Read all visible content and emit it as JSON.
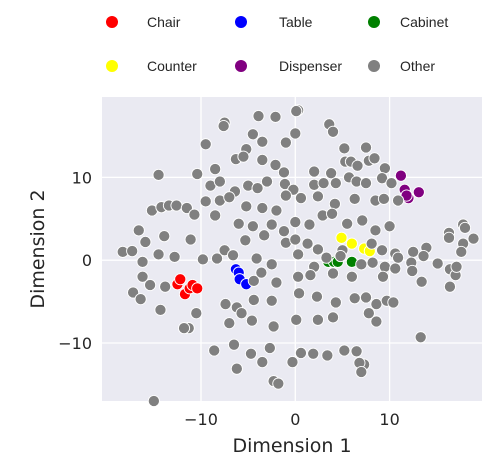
{
  "chart_data": {
    "type": "scatter",
    "title": "",
    "xlabel": "Dimension 1",
    "ylabel": "Dimension 2",
    "xlim": [
      -20.5,
      19.8
    ],
    "ylim": [
      -17.0,
      19.7
    ],
    "xticks": [
      -10,
      0,
      10
    ],
    "xtick_labels": [
      "−10",
      "0",
      "10"
    ],
    "yticks": [
      -10,
      0,
      10
    ],
    "ytick_labels": [
      "−10",
      "0",
      "10"
    ],
    "grid": true,
    "background": "#eaeaf2",
    "legend": {
      "placement": "top",
      "columns": 3
    },
    "series": [
      {
        "name": "Chair",
        "color": "#ff0000",
        "points": [
          [
            -12.5,
            -2.9
          ],
          [
            -12.2,
            -2.3
          ],
          [
            -11.7,
            -4.1
          ],
          [
            -11.2,
            -3.4
          ],
          [
            -10.9,
            -3.0
          ],
          [
            -10.4,
            -3.4
          ]
        ]
      },
      {
        "name": "Table",
        "color": "#0000ff",
        "points": [
          [
            -6.3,
            -1.1
          ],
          [
            -6.0,
            -1.5
          ],
          [
            -5.9,
            -2.3
          ],
          [
            -5.2,
            -2.9
          ]
        ]
      },
      {
        "name": "Cabinet",
        "color": "#008000",
        "points": [
          [
            3.5,
            -0.2
          ],
          [
            4.1,
            -0.2
          ],
          [
            4.5,
            -0.2
          ],
          [
            6.0,
            -0.2
          ]
        ]
      },
      {
        "name": "Counter",
        "color": "#ffff00",
        "points": [
          [
            4.9,
            2.7
          ],
          [
            6.0,
            2.0
          ],
          [
            7.3,
            1.4
          ],
          [
            7.9,
            1.1
          ]
        ]
      },
      {
        "name": "Dispenser",
        "color": "#800080",
        "points": [
          [
            11.2,
            10.2
          ],
          [
            11.6,
            8.5
          ],
          [
            12.0,
            7.5
          ],
          [
            11.8,
            7.8
          ],
          [
            13.1,
            8.2
          ]
        ]
      },
      {
        "name": "Other",
        "color": "#808080",
        "points": [
          [
            0.3,
            18.1
          ],
          [
            0.1,
            18.0
          ],
          [
            -3.9,
            17.4
          ],
          [
            -2.1,
            17.3
          ],
          [
            -7.5,
            16.6
          ],
          [
            -7.6,
            16.2
          ],
          [
            3.6,
            16.4
          ],
          [
            4.0,
            15.5
          ],
          [
            -4.5,
            15.2
          ],
          [
            0.0,
            15.3
          ],
          [
            -3.5,
            14.3
          ],
          [
            -1.0,
            14.2
          ],
          [
            -9.5,
            14.0
          ],
          [
            -5.2,
            13.4
          ],
          [
            7.5,
            13.6
          ],
          [
            5.2,
            13.5
          ],
          [
            -14.5,
            10.3
          ],
          [
            -10.4,
            10.4
          ],
          [
            -8.5,
            11.0
          ],
          [
            -6.3,
            12.2
          ],
          [
            -5.5,
            12.5
          ],
          [
            -3.5,
            12.1
          ],
          [
            -2.1,
            11.5
          ],
          [
            -1.2,
            10.6
          ],
          [
            2.0,
            10.7
          ],
          [
            3.8,
            10.5
          ],
          [
            5.3,
            11.9
          ],
          [
            5.9,
            11.9
          ],
          [
            6.6,
            11.4
          ],
          [
            7.8,
            12.0
          ],
          [
            8.4,
            12.3
          ],
          [
            9.5,
            11.1
          ],
          [
            -9.0,
            9.0
          ],
          [
            -8.0,
            9.5
          ],
          [
            -6.4,
            8.3
          ],
          [
            -5.0,
            9.0
          ],
          [
            -4.0,
            8.7
          ],
          [
            -3.0,
            9.5
          ],
          [
            -1.1,
            9.2
          ],
          [
            -0.2,
            8.5
          ],
          [
            2.0,
            9.1
          ],
          [
            3.0,
            9.3
          ],
          [
            4.3,
            9.3
          ],
          [
            5.7,
            10.0
          ],
          [
            6.5,
            9.5
          ],
          [
            7.5,
            9.3
          ],
          [
            9.2,
            9.9
          ],
          [
            10.2,
            9.3
          ],
          [
            -9.5,
            7.1
          ],
          [
            -8.0,
            7.2
          ],
          [
            -7.0,
            7.6
          ],
          [
            -5.2,
            6.5
          ],
          [
            -3.5,
            6.3
          ],
          [
            -2.0,
            6.0
          ],
          [
            -1.0,
            7.8
          ],
          [
            0.6,
            7.5
          ],
          [
            2.4,
            7.7
          ],
          [
            4.2,
            6.8
          ],
          [
            6.3,
            7.4
          ],
          [
            8.5,
            7.2
          ],
          [
            9.4,
            7.4
          ],
          [
            10.9,
            7.2
          ],
          [
            -15.2,
            6.0
          ],
          [
            -14.2,
            6.4
          ],
          [
            -13.4,
            6.6
          ],
          [
            -12.6,
            6.6
          ],
          [
            -11.5,
            6.3
          ],
          [
            -10.7,
            5.5
          ],
          [
            -8.5,
            5.4
          ],
          [
            -6.0,
            4.4
          ],
          [
            -4.5,
            4.1
          ],
          [
            -2.5,
            4.3
          ],
          [
            -1.2,
            3.5
          ],
          [
            0.0,
            4.6
          ],
          [
            1.5,
            4.3
          ],
          [
            2.9,
            5.4
          ],
          [
            3.9,
            5.6
          ],
          [
            5.5,
            4.4
          ],
          [
            7.1,
            4.8
          ],
          [
            8.5,
            3.6
          ],
          [
            10.0,
            4.1
          ],
          [
            -16.6,
            3.6
          ],
          [
            -15.9,
            2.2
          ],
          [
            -13.9,
            2.9
          ],
          [
            -11.1,
            2.5
          ],
          [
            -7.5,
            1.2
          ],
          [
            -5.3,
            2.4
          ],
          [
            -3.3,
            3.0
          ],
          [
            -1.0,
            2.1
          ],
          [
            0.0,
            2.5
          ],
          [
            1.3,
            2.0
          ],
          [
            2.4,
            1.3
          ],
          [
            5.0,
            1.2
          ],
          [
            8.1,
            2.0
          ],
          [
            9.2,
            1.2
          ],
          [
            10.6,
            0.8
          ],
          [
            12.5,
            1.0
          ],
          [
            13.9,
            1.5
          ],
          [
            -18.3,
            1.0
          ],
          [
            -17.3,
            1.1
          ],
          [
            -16.2,
            -0.2
          ],
          [
            -14.5,
            0.7
          ],
          [
            -12.8,
            0.4
          ],
          [
            -9.8,
            0.1
          ],
          [
            -8.3,
            0.2
          ],
          [
            -6.6,
            0.6
          ],
          [
            -4.1,
            0.2
          ],
          [
            -2.5,
            -0.5
          ],
          [
            0.3,
            0.7
          ],
          [
            2.0,
            -0.8
          ],
          [
            3.3,
            0.3
          ],
          [
            4.8,
            0.5
          ],
          [
            7.0,
            -0.5
          ],
          [
            8.2,
            -0.3
          ],
          [
            9.5,
            -0.8
          ],
          [
            10.9,
            0.3
          ],
          [
            12.3,
            -0.3
          ],
          [
            13.6,
            0.5
          ],
          [
            -16.2,
            -2.0
          ],
          [
            -15.4,
            -3.0
          ],
          [
            -13.8,
            -3.2
          ],
          [
            -4.4,
            -2.5
          ],
          [
            -3.6,
            -1.5
          ],
          [
            -2.0,
            -2.7
          ],
          [
            0.3,
            -2.0
          ],
          [
            1.6,
            -1.8
          ],
          [
            4.0,
            -1.6
          ],
          [
            6.0,
            -2.0
          ],
          [
            9.3,
            -2.0
          ],
          [
            10.6,
            -1.0
          ],
          [
            12.4,
            -1.3
          ],
          [
            13.4,
            -2.6
          ],
          [
            15.1,
            -0.4
          ],
          [
            16.4,
            -1.1
          ],
          [
            17.0,
            -1.8
          ],
          [
            -17.2,
            -3.9
          ],
          [
            -16.4,
            -4.7
          ],
          [
            -14.3,
            -6.0
          ],
          [
            -11.3,
            -8.2
          ],
          [
            -10.5,
            -6.4
          ],
          [
            -7.4,
            -5.3
          ],
          [
            -6.2,
            -5.7
          ],
          [
            -4.4,
            -4.8
          ],
          [
            -2.5,
            -4.9
          ],
          [
            0.4,
            -4.0
          ],
          [
            2.3,
            -4.4
          ],
          [
            4.3,
            -5.1
          ],
          [
            6.3,
            -4.6
          ],
          [
            7.5,
            -4.5
          ],
          [
            8.6,
            -5.3
          ],
          [
            9.7,
            -4.9
          ],
          [
            10.4,
            -5.1
          ],
          [
            16.4,
            -3.2
          ],
          [
            -11.8,
            -8.2
          ],
          [
            -7.0,
            -7.6
          ],
          [
            -5.7,
            -6.4
          ],
          [
            -4.6,
            -7.3
          ],
          [
            -2.3,
            -8.0
          ],
          [
            0.1,
            -7.2
          ],
          [
            2.4,
            -7.2
          ],
          [
            4.0,
            -6.9
          ],
          [
            7.8,
            -6.4
          ],
          [
            8.6,
            -7.4
          ],
          [
            13.3,
            -9.3
          ],
          [
            -8.6,
            -10.9
          ],
          [
            -6.5,
            -10.2
          ],
          [
            -4.7,
            -11.3
          ],
          [
            -2.7,
            -10.6
          ],
          [
            -0.3,
            -12.3
          ],
          [
            1.9,
            -11.3
          ],
          [
            3.4,
            -11.5
          ],
          [
            5.2,
            -10.9
          ],
          [
            6.5,
            -11.0
          ],
          [
            7.3,
            -12.6
          ],
          [
            6.8,
            -12.4
          ],
          [
            7.0,
            -13.5
          ],
          [
            -6.2,
            -13.1
          ],
          [
            -3.5,
            -12.3
          ],
          [
            0.6,
            -11.2
          ],
          [
            -2.3,
            -14.6
          ],
          [
            -1.8,
            -14.9
          ],
          [
            -15.0,
            -17.0
          ],
          [
            17.8,
            4.3
          ],
          [
            18.0,
            3.9
          ],
          [
            17.8,
            2.0
          ],
          [
            16.3,
            3.3
          ],
          [
            16.3,
            2.7
          ],
          [
            17.6,
            1.0
          ],
          [
            18.9,
            2.6
          ],
          [
            17.1,
            -0.8
          ]
        ]
      }
    ]
  }
}
